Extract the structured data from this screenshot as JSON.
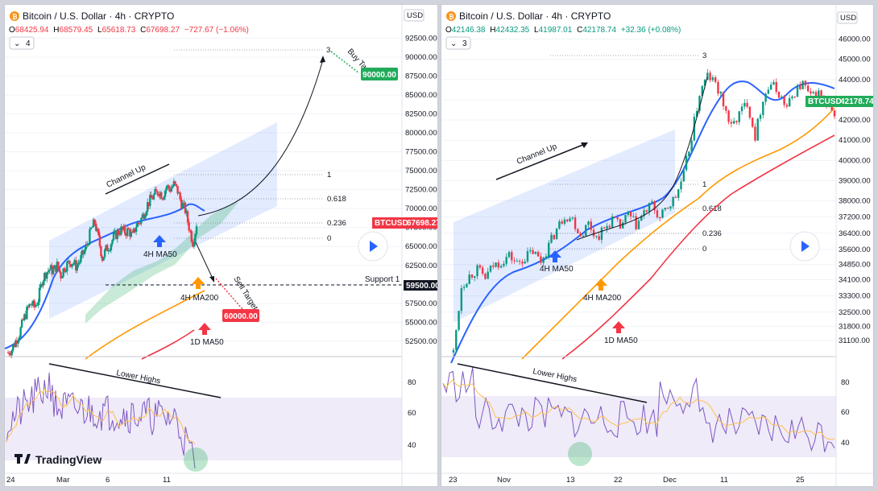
{
  "panels": [
    {
      "header": {
        "title": "Bitcoin / U.S. Dollar · 4h · CRYPTO",
        "ohlc": [
          {
            "k": "O",
            "v": "68425.94"
          },
          {
            "k": "H",
            "v": "68579.45"
          },
          {
            "k": "L",
            "v": "65618.73"
          },
          {
            "k": "C",
            "v": "67698.27"
          }
        ],
        "change": "−727.67 (−1.06%)",
        "indicators_count": "4",
        "currency": "USD"
      },
      "annotations": {
        "channel": "Channel Up",
        "buy_target": "Buy Target",
        "sell_target": "Sell Target",
        "lower_highs": "Lower Highs",
        "ma_4h_50": "4H MA50",
        "ma_4h_200": "4H MA200",
        "ma_1d_50": "1D MA50",
        "support": "Support 1",
        "fib_top": "3"
      },
      "tags": {
        "buy_target": "90000.00",
        "sell_target": "60000.00",
        "symbol": "BTCUSD",
        "symbol_price": "67698.27",
        "support_price": "59500.00"
      },
      "colors": {
        "buy": "#22ab5a",
        "sell": "#f23645",
        "up_arrow": "#2962ff",
        "orange_arrow": "#ff9800",
        "red_arrow": "#f23645",
        "ma50": "#2962ff",
        "ma200": "#ff9800",
        "ma1d": "#f23645"
      },
      "logo": "TradingView"
    },
    {
      "header": {
        "title": "Bitcoin / U.S. Dollar · 4h · CRYPTO",
        "ohlc": [
          {
            "k": "O",
            "v": "42146.38"
          },
          {
            "k": "H",
            "v": "42432.35"
          },
          {
            "k": "L",
            "v": "41987.01"
          },
          {
            "k": "C",
            "v": "42178.74"
          }
        ],
        "change": "+32.36 (+0.08%)",
        "indicators_count": "3",
        "currency": "USD"
      },
      "annotations": {
        "channel": "Channel Up",
        "lower_highs": "Lower Highs",
        "ma_4h_50": "4H MA50",
        "ma_4h_200": "4H MA200",
        "ma_1d_50": "1D MA50",
        "fib_top": "3"
      },
      "tags": {
        "symbol": "BTCUSD",
        "symbol_price": "42178.74"
      }
    }
  ],
  "chart_data": [
    {
      "type": "candlestick",
      "title": "Bitcoin / U.S. Dollar · 4h · CRYPTO",
      "y_axis_ticks": [
        92500,
        90000,
        87500,
        85000,
        82500,
        80000,
        77500,
        75000,
        72500,
        70000,
        67500,
        65000,
        62500,
        60000,
        57500,
        55000,
        52500
      ],
      "ylim": [
        51000,
        93500
      ],
      "x_ticks": [
        "24",
        "Mar",
        "6",
        "11"
      ],
      "close_series": [
        51000,
        51400,
        52500,
        53500,
        55200,
        56500,
        57500,
        57000,
        58000,
        60500,
        61500,
        62000,
        61800,
        62500,
        61200,
        62300,
        62800,
        63000,
        62400,
        63100,
        64100,
        65300,
        67200,
        68200,
        66000,
        63500,
        64600,
        65200,
        66200,
        66800,
        67200,
        66900,
        67100,
        66300,
        67800,
        68300,
        69400,
        70600,
        71300,
        71900,
        72300,
        71700,
        72900,
        72600,
        73200,
        72300,
        70700,
        69800,
        67600,
        65600,
        67700
      ],
      "fib_levels": [
        {
          "label": "1",
          "value": 73800
        },
        {
          "label": "0.618",
          "value": 70600
        },
        {
          "label": "0.236",
          "value": 67300
        },
        {
          "label": "0",
          "value": 65600
        },
        {
          "label": "3",
          "value": 90000
        }
      ],
      "support": 59500,
      "buy_target": 90000,
      "sell_target": 60000,
      "last_price": 67698.27,
      "rsi": {
        "y_ticks": [
          80,
          60,
          40
        ],
        "ylim": [
          28,
          92
        ]
      }
    },
    {
      "type": "candlestick",
      "title": "Bitcoin / U.S. Dollar · 4h · CRYPTO",
      "y_axis_ticks": [
        46000,
        45000,
        44000,
        43000,
        42000,
        41000,
        40000,
        39000,
        38000,
        37200,
        36400,
        35600,
        34850,
        34100,
        33300,
        32500,
        31800,
        31100
      ],
      "ylim": [
        30500,
        46500
      ],
      "x_ticks": [
        "23",
        "Nov",
        "13",
        "22",
        "Dec",
        "11",
        "25"
      ],
      "close_series": [
        30500,
        33800,
        34300,
        34600,
        34200,
        34800,
        35000,
        35300,
        34900,
        35200,
        35500,
        35000,
        35800,
        36600,
        37300,
        37100,
        36300,
        36900,
        36200,
        36600,
        37100,
        36700,
        37300,
        36800,
        37400,
        37800,
        37100,
        37700,
        38200,
        39300,
        41200,
        43300,
        44200,
        43800,
        42800,
        41600,
        42300,
        42900,
        41200,
        43100,
        43800,
        43300,
        42600,
        43400,
        43800,
        43100,
        43300,
        42600,
        42178.74
      ],
      "fib_levels": [
        {
          "label": "1",
          "value": 38000
        },
        {
          "label": "0.618",
          "value": 37000
        },
        {
          "label": "0.236",
          "value": 35900
        },
        {
          "label": "0",
          "value": 35200
        },
        {
          "label": "3",
          "value": 44100
        }
      ],
      "last_price": 42178.74,
      "rsi": {
        "y_ticks": [
          80,
          60,
          40
        ],
        "ylim": [
          28,
          92
        ]
      }
    }
  ]
}
